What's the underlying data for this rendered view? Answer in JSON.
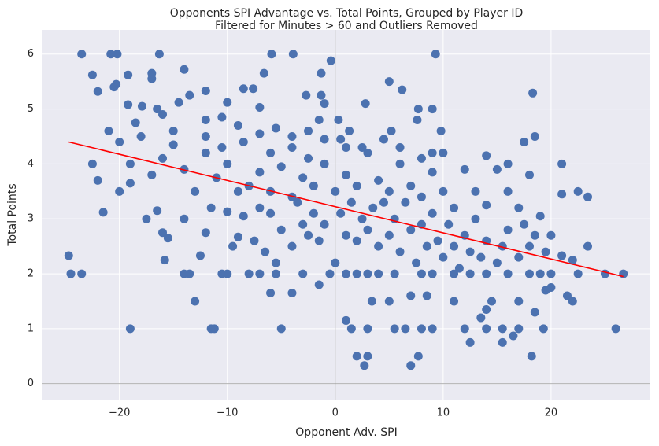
{
  "chart_data": {
    "type": "scatter",
    "title": "Opponents SPI Advantage vs. Total Points, Grouped by Player ID",
    "subtitle": "Filtered for Minutes > 60 and Outliers Removed",
    "x_label": "Opponent Adv. SPI",
    "y_label": "Total Points",
    "color": "#4c72b0",
    "x": [
      -23.5,
      -20.8,
      -20.2,
      -16.3,
      -5.9,
      -3.9,
      9.3,
      -0.4,
      -22.5,
      -19.2,
      -17,
      -17,
      -14,
      -20.3,
      -20.5,
      -22,
      -12,
      -13.5,
      -6.6,
      -8.5,
      -7.6,
      -1.3,
      -19.2,
      -17.9,
      -16.5,
      -14.5,
      -10,
      -7,
      -2.7,
      -1.3,
      -1,
      2.8,
      5,
      6.2,
      7.7,
      9,
      18.3,
      -21,
      -18.5,
      -16,
      -15,
      -12,
      -10.5,
      -9,
      -5.5,
      -4,
      -2.5,
      -1.5,
      0.3,
      1.3,
      5.2,
      7.6,
      9.8,
      -24.7,
      -24.5,
      -23.5,
      -19,
      -11.5,
      -11.2,
      -13,
      -14,
      -13.5,
      -10,
      -10.5,
      -5,
      -6,
      -4,
      -1.5,
      -8,
      -7,
      -5.5,
      -3,
      -0.5,
      1,
      2,
      3,
      4,
      5.5,
      8,
      9,
      11,
      12.5,
      14,
      16,
      18,
      19,
      20,
      22.5,
      25,
      26.7,
      1,
      1.5,
      3,
      5.5,
      6.5,
      8,
      9,
      12,
      14,
      15.5,
      17,
      19.3,
      26,
      2,
      2.7,
      3,
      7,
      7.7,
      18.2,
      12.5,
      15.5,
      16.5,
      13.5,
      14,
      14.5,
      3.4,
      5,
      7,
      8.5,
      11,
      17,
      18.5,
      21.5,
      22,
      19.5,
      20,
      -21.5,
      -20,
      -19,
      -17.5,
      -16.5,
      -16,
      -15.5,
      -15.8,
      -14,
      -12.5,
      -12,
      -11.5,
      -10,
      -9.5,
      -9,
      -8.5,
      -7.5,
      -7,
      -6,
      -6.5,
      -5.5,
      -5,
      -4,
      -3.5,
      -3,
      -2.5,
      -2,
      -1.5,
      -1,
      0,
      0.5,
      1,
      1.5,
      2,
      2.5,
      3,
      3.5,
      4,
      4.5,
      5,
      5.5,
      6,
      6.5,
      7,
      7.5,
      8,
      8.5,
      9,
      9.5,
      10,
      10.5,
      11,
      11.5,
      12,
      12.5,
      13,
      13.5,
      14,
      15,
      15.5,
      16,
      17,
      17.5,
      18,
      18.5,
      19,
      19.5,
      20,
      21,
      22,
      23.4,
      -22.5,
      -22,
      -20,
      -19,
      -18,
      -17,
      -16,
      -15,
      -14,
      -13,
      -12,
      -11,
      -10,
      -9,
      -8,
      -7,
      -6,
      -5,
      -4,
      -3,
      -2,
      -1,
      0,
      0.5,
      1,
      2,
      3,
      4,
      5,
      6,
      7,
      8,
      9,
      10,
      11,
      12,
      13,
      14,
      15,
      16,
      17,
      17.5,
      18.5,
      16,
      18,
      21,
      21,
      22.5,
      23.4,
      10,
      14,
      -12,
      -10.5,
      -8.5,
      -7,
      -6,
      -4,
      -2.5,
      -1,
      1,
      2.5,
      4.5,
      6,
      8,
      9
    ],
    "values": [
      6,
      6,
      6,
      6,
      6,
      6,
      6,
      5.88,
      5.62,
      5.62,
      5.65,
      5.55,
      5.72,
      5.45,
      5.4,
      5.32,
      5.33,
      5.25,
      5.65,
      5.37,
      5.37,
      5.65,
      5.08,
      5.05,
      5,
      5.12,
      5.12,
      5.03,
      5.25,
      5.25,
      5.1,
      5.1,
      5.5,
      5.35,
      5,
      5,
      5.29,
      4.6,
      4.75,
      4.9,
      4.6,
      4.8,
      4.85,
      4.7,
      4.65,
      4.5,
      4.6,
      4.8,
      4.8,
      4.6,
      4.6,
      4.8,
      4.6,
      2.33,
      2,
      2,
      1,
      1,
      1,
      1.5,
      2,
      2,
      2,
      2,
      1,
      1.65,
      1.65,
      1.8,
      2,
      2,
      2,
      2,
      2,
      2,
      2,
      2,
      2,
      2,
      2,
      2,
      2,
      2,
      2,
      2,
      2,
      2,
      2,
      2,
      2,
      2,
      1.15,
      1,
      1,
      1,
      1,
      1,
      1,
      1,
      1,
      1,
      1,
      1,
      1,
      0.5,
      0.33,
      0.5,
      0.33,
      0.5,
      0.5,
      0.75,
      0.75,
      0.87,
      1.2,
      1.35,
      1.5,
      1.5,
      1.5,
      1.6,
      1.6,
      1.5,
      1.5,
      1.3,
      1.6,
      1.5,
      1.7,
      1.75,
      3.12,
      3.5,
      3.65,
      3,
      3.15,
      2.75,
      2.65,
      2.25,
      3,
      2.33,
      2.75,
      3.2,
      3.13,
      2.5,
      2.67,
      3.05,
      2.6,
      3.2,
      3.1,
      2.4,
      2.2,
      2.8,
      2.5,
      3.3,
      2.9,
      2.7,
      3.1,
      2.6,
      2.9,
      2.2,
      3.1,
      2.7,
      3.3,
      2.6,
      3,
      2.8,
      3.2,
      2.5,
      3.3,
      2.7,
      3,
      2.4,
      3.3,
      2.8,
      2.2,
      2.9,
      2.5,
      3.1,
      2.6,
      2.3,
      2.9,
      2.5,
      2.1,
      2.7,
      2.4,
      3,
      2.3,
      2.6,
      2.2,
      2.5,
      2.8,
      2.3,
      2.9,
      2.5,
      2.7,
      3.05,
      2.4,
      2.7,
      2.33,
      2.25,
      2.5,
      4,
      3.7,
      4.4,
      4,
      4.5,
      3.8,
      4.1,
      4.35,
      3.9,
      3.5,
      4.2,
      3.75,
      4,
      3.5,
      3.6,
      3.85,
      3.5,
      3.95,
      3.4,
      3.75,
      3.6,
      4,
      3.5,
      4.45,
      3.8,
      3.6,
      4.2,
      3.7,
      3.5,
      4,
      3.6,
      3.4,
      3.85,
      3.5,
      3.2,
      3.9,
      3.5,
      3.25,
      3.9,
      3.5,
      3.2,
      4.4,
      4.5,
      4,
      3.8,
      4,
      3.45,
      3.5,
      3.4,
      4.2,
      4.15,
      4.5,
      4.3,
      4.4,
      4.55,
      4.2,
      4.3,
      4.1,
      4.45,
      4.3,
      4.3,
      4.45,
      4.3,
      4.1,
      4.2
    ],
    "trend": {
      "x": [
        -24.7,
        26.7
      ],
      "values": [
        4.4,
        1.95
      ],
      "color": "#ff0000"
    },
    "xlim": [
      -27.2,
      29.2
    ],
    "ylim": [
      -0.29,
      6.44
    ],
    "xticks": [
      {
        "value": -20,
        "label": "−20"
      },
      {
        "value": -10,
        "label": "−10"
      },
      0,
      10,
      20
    ],
    "yticks": [
      0,
      1,
      2,
      3,
      4,
      5,
      6
    ],
    "grid": true
  }
}
